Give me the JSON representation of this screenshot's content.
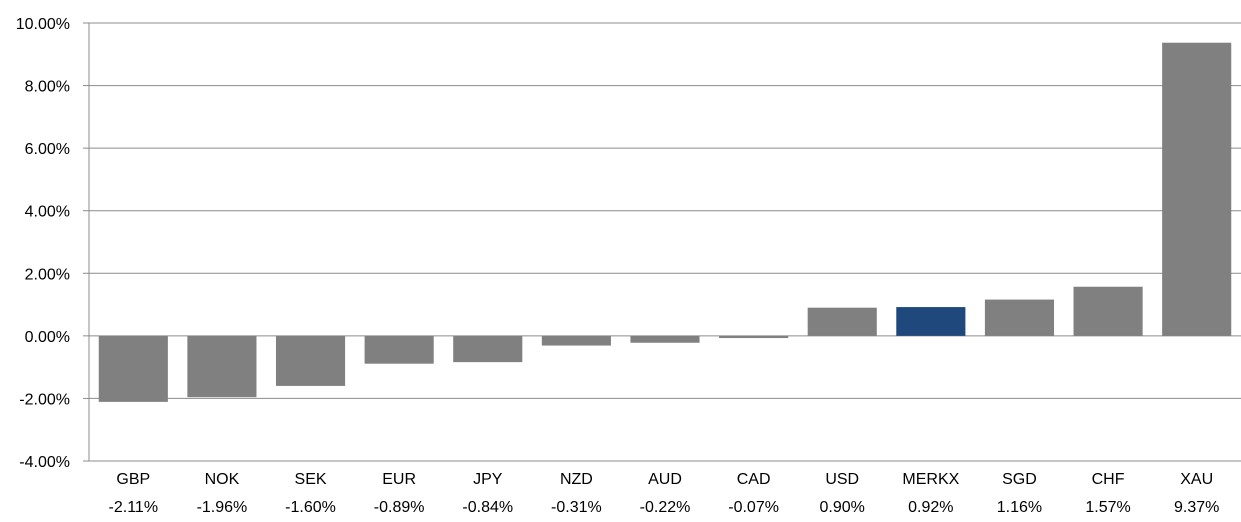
{
  "chart_data": {
    "type": "bar",
    "title": "",
    "xlabel": "",
    "ylabel": "",
    "categories": [
      "GBP",
      "NOK",
      "SEK",
      "EUR",
      "JPY",
      "NZD",
      "AUD",
      "CAD",
      "USD",
      "MERKX",
      "SGD",
      "CHF",
      "XAU"
    ],
    "values": [
      -2.11,
      -1.96,
      -1.6,
      -0.89,
      -0.84,
      -0.31,
      -0.22,
      -0.07,
      0.9,
      0.92,
      1.16,
      1.57,
      9.37
    ],
    "value_labels": [
      "-2.11%",
      "-1.96%",
      "-1.60%",
      "-0.89%",
      "-0.84%",
      "-0.31%",
      "-0.22%",
      "-0.07%",
      "0.90%",
      "0.92%",
      "1.16%",
      "1.57%",
      "9.37%"
    ],
    "ylim": [
      -4,
      10
    ],
    "yticks": [
      10,
      8,
      6,
      4,
      2,
      0,
      -2,
      -4
    ],
    "ytick_labels": [
      "10.00%",
      "8.00%",
      "6.00%",
      "4.00%",
      "2.00%",
      "0.00%",
      "-2.00%",
      "-4.00%"
    ],
    "grid": true,
    "legend": "none",
    "colors": {
      "default_bar": "#808080",
      "highlight_bar": "#1f497d",
      "grid": "#8c8c8c",
      "axis": "#8c8c8c",
      "text": "#000000"
    },
    "highlight_category": "MERKX"
  }
}
